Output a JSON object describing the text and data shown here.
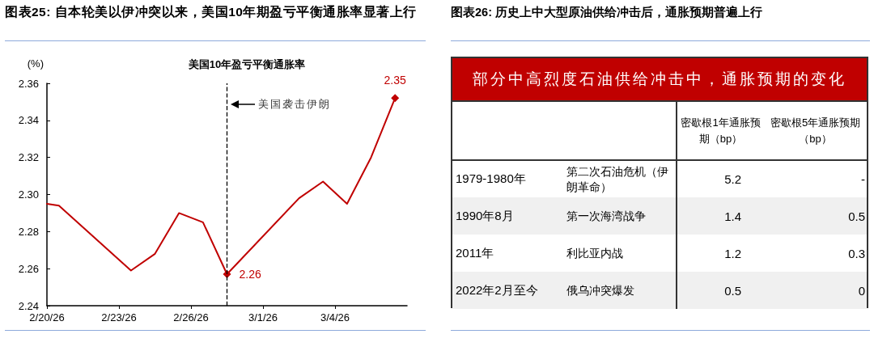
{
  "chart_data": [
    {
      "type": "line",
      "title": "图表25:  自本轮美以伊冲突以来，美国10年期盈亏平衡通胀率显著上行",
      "subtitle": "美国10年盈亏平衡通胀率",
      "ylabel": "(%)",
      "x": [
        "--02-20",
        "--02-20T12:00",
        "--02-23T12:00",
        "--02-24T12:00",
        "--02-25T12:00",
        "--02-26T12:00",
        "--02-27T12:00",
        "--03-02T12:00",
        "--03-03T12:00",
        "--03-04T12:00",
        "--03-05T12:00",
        "--03-06T12:00"
      ],
      "series": [
        {
          "color": "#c00000",
          "values": [
            2.295,
            2.294,
            2.259,
            2.268,
            2.29,
            2.285,
            2.257,
            2.298,
            2.307,
            2.295,
            2.32,
            2.352
          ],
          "value_labels": [
            null,
            null,
            null,
            null,
            null,
            null,
            "2.26",
            null,
            null,
            null,
            null,
            "2.35"
          ]
        }
      ],
      "xlim": [
        "--02-20",
        "--03-07"
      ],
      "xticks": [
        {
          "value": "--02-20",
          "label": "2/20/26"
        },
        {
          "value": "--02-23",
          "label": "2/23/26"
        },
        {
          "value": "--02-26",
          "label": "2/26/26"
        },
        {
          "value": "--03-01",
          "label": "3/1/26"
        },
        {
          "value": "--03-04",
          "label": "3/4/26"
        }
      ],
      "ylim": [
        2.24,
        2.36
      ],
      "yticks": [
        2.24,
        2.26,
        2.28,
        {
          "value": 2.3,
          "label": "2.30"
        },
        2.32,
        2.34,
        2.36
      ],
      "ref_lines": [
        {
          "axis": "x",
          "value": "--02-27T12:00",
          "label": "美国袭击伊朗",
          "color": "#000000",
          "line_style": "dashed"
        }
      ],
      "line_style": "solid",
      "grid": false
    },
    {
      "type": "other",
      "title": "图表26:  历史上中大型原油供给冲击后，通胀预期普遍上行",
      "subtitle": "部分中高烈度石油供给冲击中，通胀预期的变化",
      "categories": [
        "密歇根1年通胀预期（bp）",
        "密歇根5年通胀预期（bp）"
      ],
      "y_categories": [
        "1979-1980年",
        "1990年8月",
        "2011年",
        "2022年2月至今"
      ],
      "y2_categories": [
        "第二次石油危机（伊朗革命）",
        "第一次海湾战争",
        "利比亚内战",
        "俄乌冲突爆发"
      ],
      "cell_labels": [
        [
          "5.2",
          "-"
        ],
        [
          "1.4",
          "0.5"
        ],
        [
          "1.2",
          "0.3"
        ],
        [
          "0.5",
          "0"
        ]
      ]
    }
  ]
}
